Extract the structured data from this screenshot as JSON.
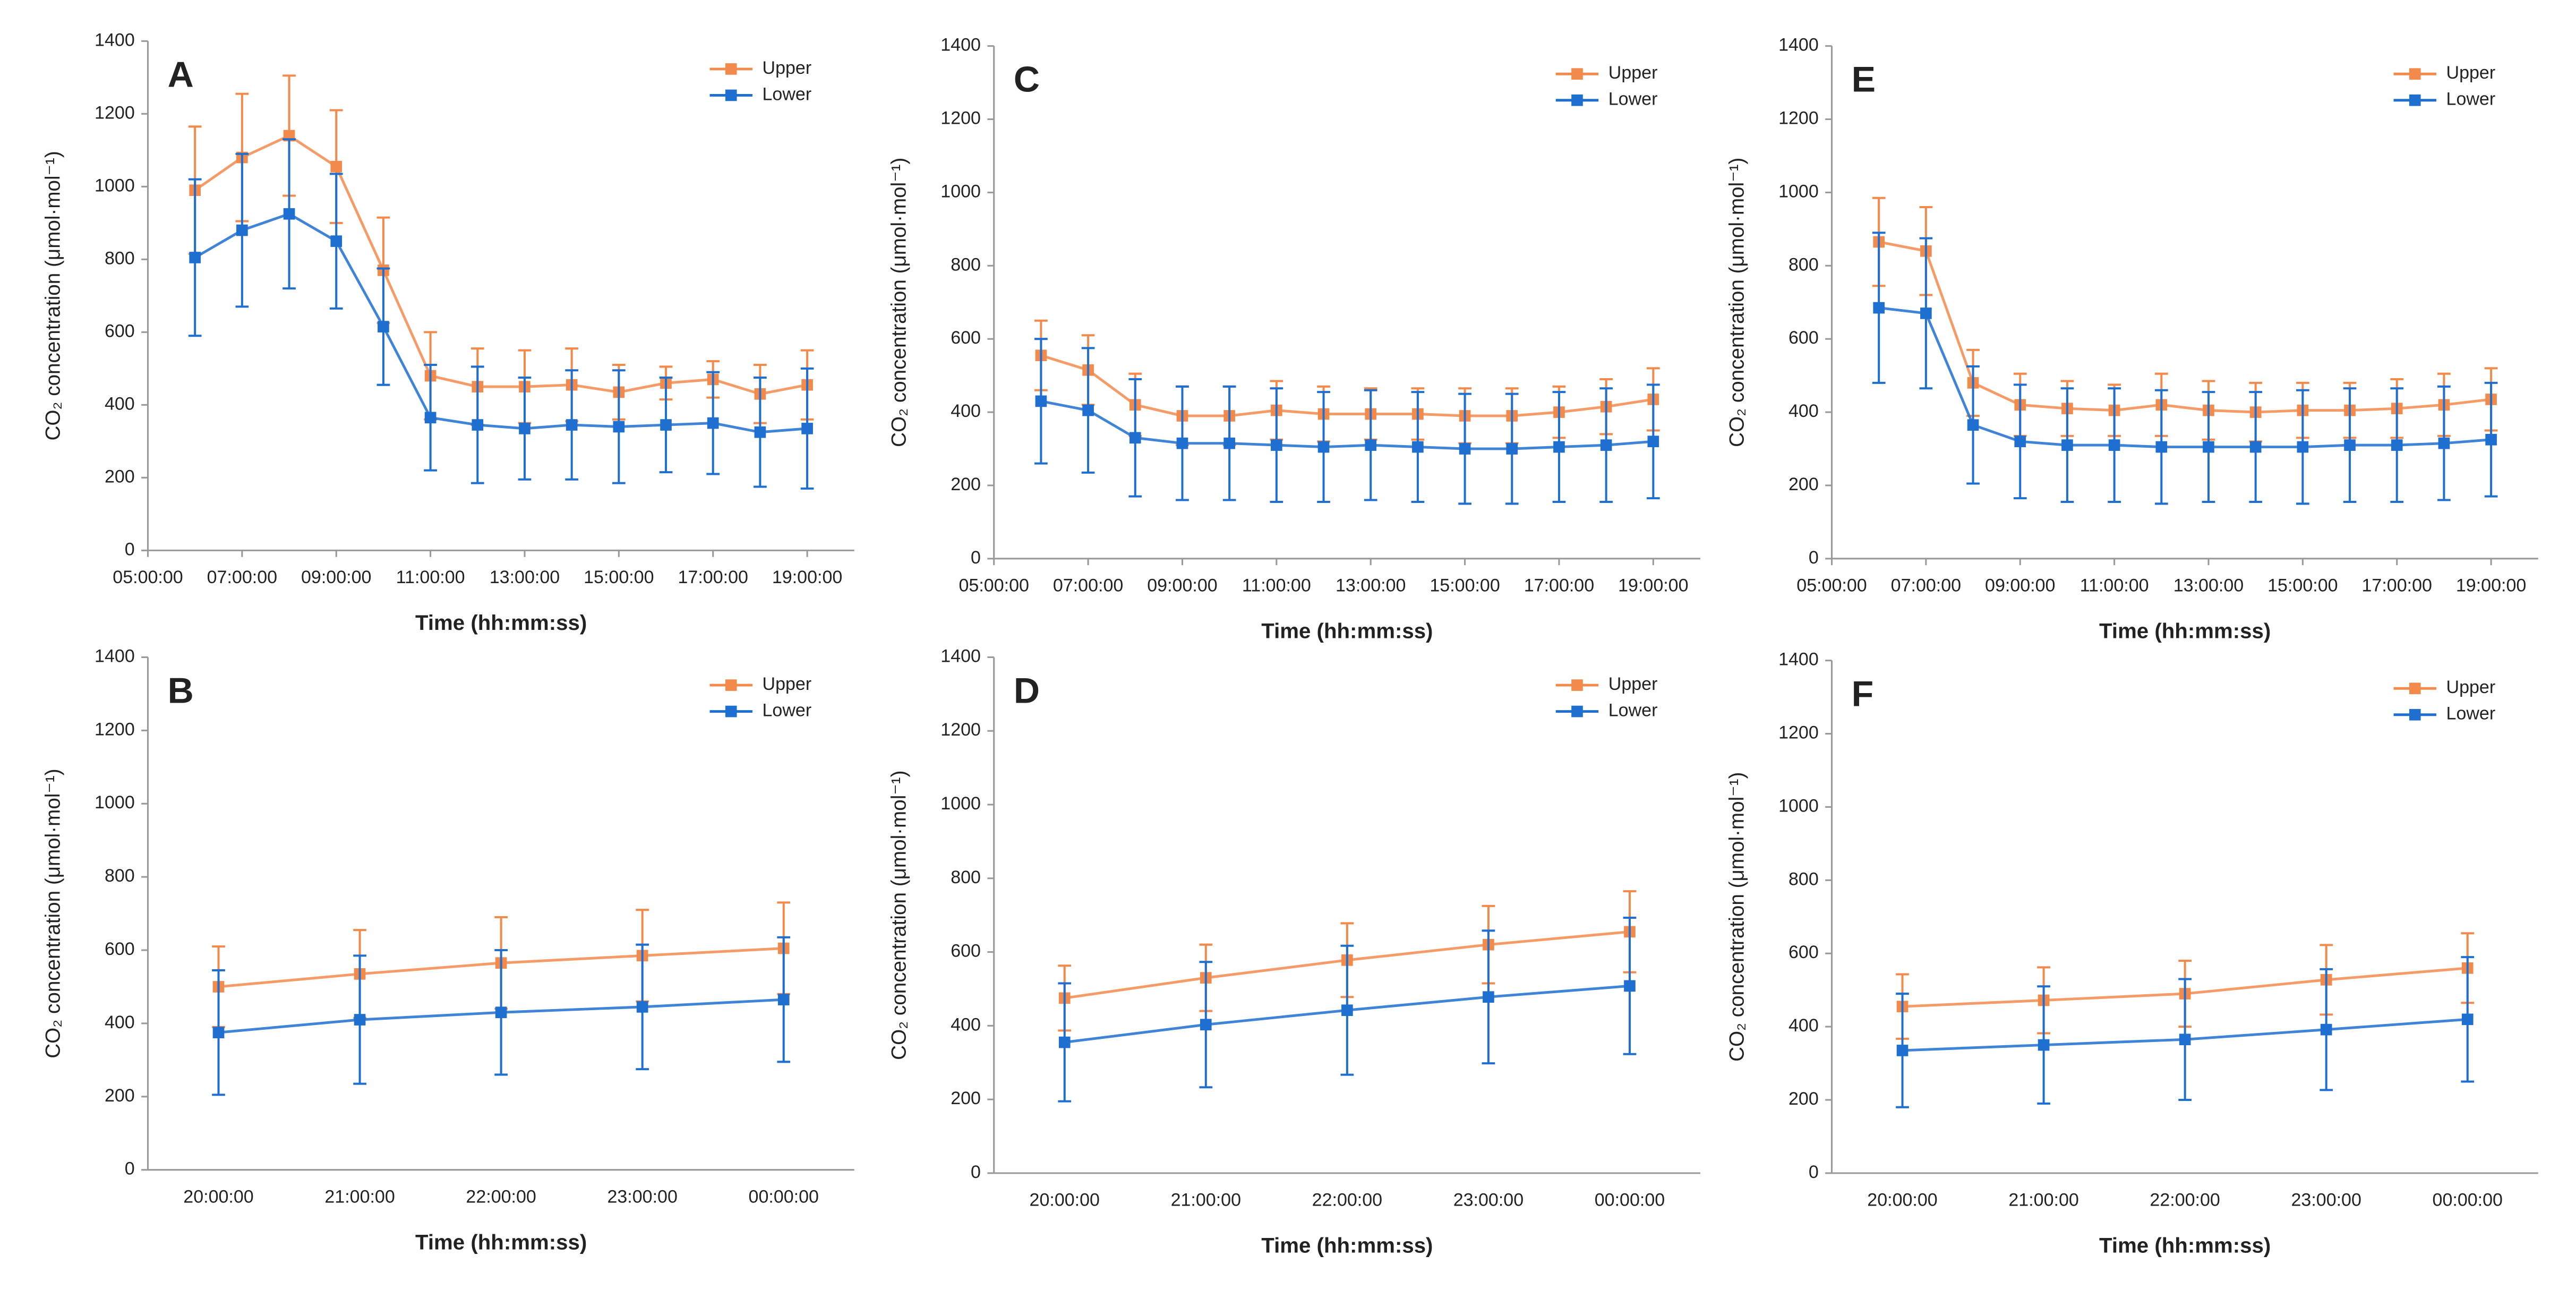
{
  "chart_data": [
    {
      "type": "line",
      "label": "A",
      "x_label": "Time (hh:mm:ss)",
      "y_label": "CO₂ concentration (μmol·mol⁻¹)",
      "legend": "top-right",
      "x": [
        6,
        7,
        8,
        9,
        10,
        11,
        12,
        13,
        14,
        15,
        16,
        17,
        18,
        19
      ],
      "xlim": [
        5,
        20
      ],
      "xticks": [
        {
          "value": 5,
          "label": "05:00:00"
        },
        {
          "value": 7,
          "label": "07:00:00"
        },
        {
          "value": 9,
          "label": "09:00:00"
        },
        {
          "value": 11,
          "label": "11:00:00"
        },
        {
          "value": 13,
          "label": "13:00:00"
        },
        {
          "value": 15,
          "label": "15:00:00"
        },
        {
          "value": 17,
          "label": "17:00:00"
        },
        {
          "value": 19,
          "label": "19:00:00"
        }
      ],
      "ylim": [
        0,
        1400
      ],
      "yticks": [
        0,
        200,
        400,
        600,
        800,
        1000,
        1200,
        1400
      ],
      "series": [
        {
          "name": "Upper",
          "color": "#f28a4c",
          "values": [
            990,
            1080,
            1140,
            1055,
            770,
            480,
            450,
            450,
            455,
            435,
            460,
            470,
            430,
            455
          ],
          "errors": [
            175,
            175,
            165,
            155,
            145,
            120,
            105,
            100,
            100,
            75,
            45,
            50,
            80,
            95
          ]
        },
        {
          "name": "Lower",
          "color": "#1f6fd1",
          "values": [
            805,
            880,
            925,
            850,
            615,
            365,
            345,
            335,
            345,
            340,
            345,
            350,
            325,
            335
          ],
          "errors": [
            215,
            210,
            205,
            185,
            160,
            145,
            160,
            140,
            150,
            155,
            130,
            140,
            150,
            165
          ]
        }
      ]
    },
    {
      "type": "line",
      "label": "B",
      "x_label": "Time (hh:mm:ss)",
      "y_label": "CO₂ concentration (μmol·mol⁻¹)",
      "legend": "top-right",
      "categories": [
        "20:00:00",
        "21:00:00",
        "22:00:00",
        "23:00:00",
        "00:00:00"
      ],
      "ylim": [
        0,
        1400
      ],
      "yticks": [
        0,
        200,
        400,
        600,
        800,
        1000,
        1200,
        1400
      ],
      "series": [
        {
          "name": "Upper",
          "color": "#f28a4c",
          "values": [
            500,
            535,
            565,
            585,
            605
          ],
          "errors": [
            110,
            120,
            125,
            125,
            125
          ]
        },
        {
          "name": "Lower",
          "color": "#1f6fd1",
          "values": [
            375,
            410,
            430,
            445,
            465
          ],
          "errors": [
            170,
            175,
            170,
            170,
            170
          ]
        }
      ]
    },
    {
      "type": "line",
      "label": "C",
      "x_label": "Time (hh:mm:ss)",
      "y_label": "CO₂ concentration (μmol·mol⁻¹)",
      "legend": "top-right",
      "x": [
        6,
        7,
        8,
        9,
        10,
        11,
        12,
        13,
        14,
        15,
        16,
        17,
        18,
        19
      ],
      "xlim": [
        5,
        20
      ],
      "xticks": [
        {
          "value": 5,
          "label": "05:00:00"
        },
        {
          "value": 7,
          "label": "07:00:00"
        },
        {
          "value": 9,
          "label": "09:00:00"
        },
        {
          "value": 11,
          "label": "11:00:00"
        },
        {
          "value": 13,
          "label": "13:00:00"
        },
        {
          "value": 15,
          "label": "15:00:00"
        },
        {
          "value": 17,
          "label": "17:00:00"
        },
        {
          "value": 19,
          "label": "19:00:00"
        }
      ],
      "ylim": [
        0,
        1400
      ],
      "yticks": [
        0,
        200,
        400,
        600,
        800,
        1000,
        1200,
        1400
      ],
      "series": [
        {
          "name": "Upper",
          "color": "#f28a4c",
          "values": [
            555,
            515,
            420,
            390,
            390,
            405,
            395,
            395,
            395,
            390,
            390,
            400,
            415,
            435
          ],
          "errors": [
            95,
            95,
            85,
            80,
            80,
            80,
            75,
            70,
            70,
            75,
            75,
            70,
            75,
            85
          ]
        },
        {
          "name": "Lower",
          "color": "#1f6fd1",
          "values": [
            430,
            405,
            330,
            315,
            315,
            310,
            305,
            310,
            305,
            300,
            300,
            305,
            310,
            320
          ],
          "errors": [
            170,
            170,
            160,
            155,
            155,
            155,
            150,
            150,
            150,
            150,
            150,
            150,
            155,
            155
          ]
        }
      ]
    },
    {
      "type": "line",
      "label": "D",
      "x_label": "Time (hh:mm:ss)",
      "y_label": "CO₂ concentration (μmol·mol⁻¹)",
      "legend": "top-right",
      "categories": [
        "20:00:00",
        "21:00:00",
        "22:00:00",
        "23:00:00",
        "00:00:00"
      ],
      "ylim": [
        0,
        1400
      ],
      "yticks": [
        0,
        200,
        400,
        600,
        800,
        1000,
        1200,
        1400
      ],
      "series": [
        {
          "name": "Upper",
          "color": "#f28a4c",
          "values": [
            475,
            530,
            578,
            620,
            655
          ],
          "errors": [
            88,
            90,
            100,
            105,
            110
          ]
        },
        {
          "name": "Lower",
          "color": "#1f6fd1",
          "values": [
            355,
            403,
            442,
            478,
            508
          ],
          "errors": [
            160,
            170,
            175,
            180,
            185
          ]
        }
      ]
    },
    {
      "type": "line",
      "label": "E",
      "x_label": "Time (hh:mm:ss)",
      "y_label": "CO₂ concentration (μmol·mol⁻¹)",
      "legend": "top-right",
      "x": [
        6,
        7,
        8,
        9,
        10,
        11,
        12,
        13,
        14,
        15,
        16,
        17,
        18,
        19
      ],
      "xlim": [
        5,
        20
      ],
      "xticks": [
        {
          "value": 5,
          "label": "05:00:00"
        },
        {
          "value": 7,
          "label": "07:00:00"
        },
        {
          "value": 9,
          "label": "09:00:00"
        },
        {
          "value": 11,
          "label": "11:00:00"
        },
        {
          "value": 13,
          "label": "13:00:00"
        },
        {
          "value": 15,
          "label": "15:00:00"
        },
        {
          "value": 17,
          "label": "17:00:00"
        },
        {
          "value": 19,
          "label": "19:00:00"
        }
      ],
      "ylim": [
        0,
        1400
      ],
      "yticks": [
        0,
        200,
        400,
        600,
        800,
        1000,
        1200,
        1400
      ],
      "series": [
        {
          "name": "Upper",
          "color": "#f28a4c",
          "values": [
            865,
            840,
            480,
            420,
            410,
            405,
            420,
            405,
            400,
            405,
            405,
            410,
            420,
            435
          ],
          "errors": [
            120,
            120,
            90,
            85,
            75,
            70,
            85,
            80,
            80,
            75,
            75,
            80,
            85,
            85
          ]
        },
        {
          "name": "Lower",
          "color": "#1f6fd1",
          "values": [
            685,
            670,
            365,
            320,
            310,
            310,
            305,
            305,
            305,
            305,
            310,
            310,
            315,
            325
          ],
          "errors": [
            205,
            205,
            160,
            155,
            155,
            155,
            155,
            150,
            150,
            155,
            155,
            155,
            155,
            155
          ]
        }
      ]
    },
    {
      "type": "line",
      "label": "F",
      "x_label": "Time (hh:mm:ss)",
      "y_label": "CO₂ concentration (μmol·mol⁻¹)",
      "legend": "top-right",
      "categories": [
        "20:00:00",
        "21:00:00",
        "22:00:00",
        "23:00:00",
        "00:00:00"
      ],
      "ylim": [
        0,
        1400
      ],
      "yticks": [
        0,
        200,
        400,
        600,
        800,
        1000,
        1200,
        1400
      ],
      "series": [
        {
          "name": "Upper",
          "color": "#f28a4c",
          "values": [
            455,
            472,
            490,
            528,
            560
          ],
          "errors": [
            88,
            90,
            90,
            95,
            95
          ]
        },
        {
          "name": "Lower",
          "color": "#1f6fd1",
          "values": [
            335,
            350,
            365,
            392,
            420
          ],
          "errors": [
            155,
            160,
            165,
            165,
            170
          ]
        }
      ]
    }
  ]
}
